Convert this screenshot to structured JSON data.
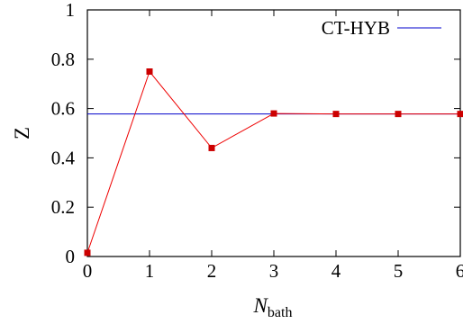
{
  "chart_data": {
    "type": "line",
    "xlabel": {
      "main": "N",
      "sub": "bath"
    },
    "ylabel": "Z",
    "xlim": [
      0,
      6
    ],
    "ylim": [
      0,
      1
    ],
    "x_ticks": [
      "0",
      "1",
      "2",
      "3",
      "4",
      "5",
      "6"
    ],
    "y_ticks": [
      "0",
      "0.2",
      "0.4",
      "0.6",
      "0.8",
      "1"
    ],
    "grid": false,
    "legend_position": "top-right",
    "series": [
      {
        "name": "",
        "color": "#ee0000",
        "marker": "square",
        "x": [
          0,
          1,
          2,
          3,
          4,
          5,
          6
        ],
        "y": [
          0.015,
          0.75,
          0.44,
          0.58,
          0.578,
          0.578,
          0.578
        ]
      },
      {
        "name": "CT-HYB",
        "color": "#0000cc",
        "marker": "none",
        "constant_y": 0.578
      }
    ]
  }
}
